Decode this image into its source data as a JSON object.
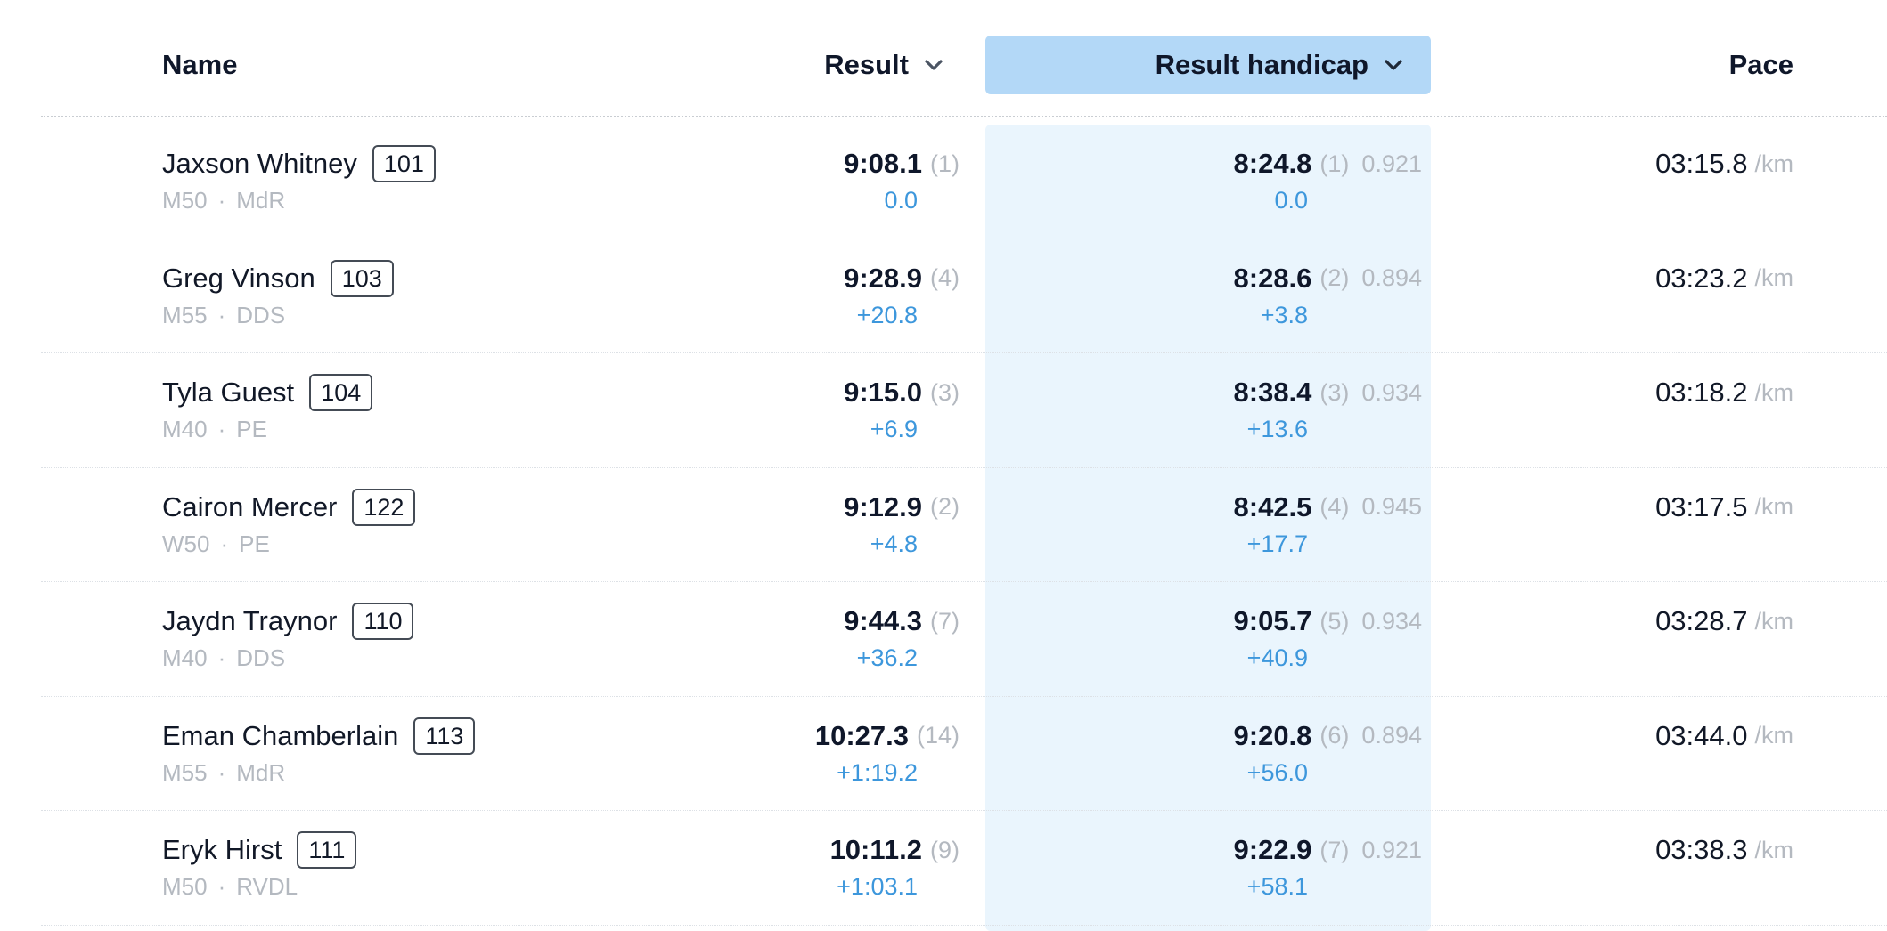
{
  "header": {
    "name": "Name",
    "result": "Result",
    "result_handicap": "Result handicap",
    "pace": "Pace"
  },
  "icons": {
    "sort": "chevron-down-icon"
  },
  "colors": {
    "accent_header": "#b3d8f7",
    "accent_column": "#eaf5fd",
    "diff_blue": "#3d97dc"
  },
  "rows": [
    {
      "name": "Jaxson Whitney",
      "bib": "101",
      "category": "M50",
      "club": "MdR",
      "result": "9:08.1",
      "result_rank": "(1)",
      "result_diff": "0.0",
      "handicap": "8:24.8",
      "handicap_rank": "(1)",
      "factor": "0.921",
      "handicap_diff": "0.0",
      "pace": "03:15.8",
      "pace_unit": "/km"
    },
    {
      "name": "Greg Vinson",
      "bib": "103",
      "category": "M55",
      "club": "DDS",
      "result": "9:28.9",
      "result_rank": "(4)",
      "result_diff": "+20.8",
      "handicap": "8:28.6",
      "handicap_rank": "(2)",
      "factor": "0.894",
      "handicap_diff": "+3.8",
      "pace": "03:23.2",
      "pace_unit": "/km"
    },
    {
      "name": "Tyla Guest",
      "bib": "104",
      "category": "M40",
      "club": "PE",
      "result": "9:15.0",
      "result_rank": "(3)",
      "result_diff": "+6.9",
      "handicap": "8:38.4",
      "handicap_rank": "(3)",
      "factor": "0.934",
      "handicap_diff": "+13.6",
      "pace": "03:18.2",
      "pace_unit": "/km"
    },
    {
      "name": "Cairon Mercer",
      "bib": "122",
      "category": "W50",
      "club": "PE",
      "result": "9:12.9",
      "result_rank": "(2)",
      "result_diff": "+4.8",
      "handicap": "8:42.5",
      "handicap_rank": "(4)",
      "factor": "0.945",
      "handicap_diff": "+17.7",
      "pace": "03:17.5",
      "pace_unit": "/km"
    },
    {
      "name": "Jaydn Traynor",
      "bib": "110",
      "category": "M40",
      "club": "DDS",
      "result": "9:44.3",
      "result_rank": "(7)",
      "result_diff": "+36.2",
      "handicap": "9:05.7",
      "handicap_rank": "(5)",
      "factor": "0.934",
      "handicap_diff": "+40.9",
      "pace": "03:28.7",
      "pace_unit": "/km"
    },
    {
      "name": "Eman Chamberlain",
      "bib": "113",
      "category": "M55",
      "club": "MdR",
      "result": "10:27.3",
      "result_rank": "(14)",
      "result_diff": "+1:19.2",
      "handicap": "9:20.8",
      "handicap_rank": "(6)",
      "factor": "0.894",
      "handicap_diff": "+56.0",
      "pace": "03:44.0",
      "pace_unit": "/km"
    },
    {
      "name": "Eryk Hirst",
      "bib": "111",
      "category": "M50",
      "club": "RVDL",
      "result": "10:11.2",
      "result_rank": "(9)",
      "result_diff": "+1:03.1",
      "handicap": "9:22.9",
      "handicap_rank": "(7)",
      "factor": "0.921",
      "handicap_diff": "+58.1",
      "pace": "03:38.3",
      "pace_unit": "/km"
    }
  ]
}
